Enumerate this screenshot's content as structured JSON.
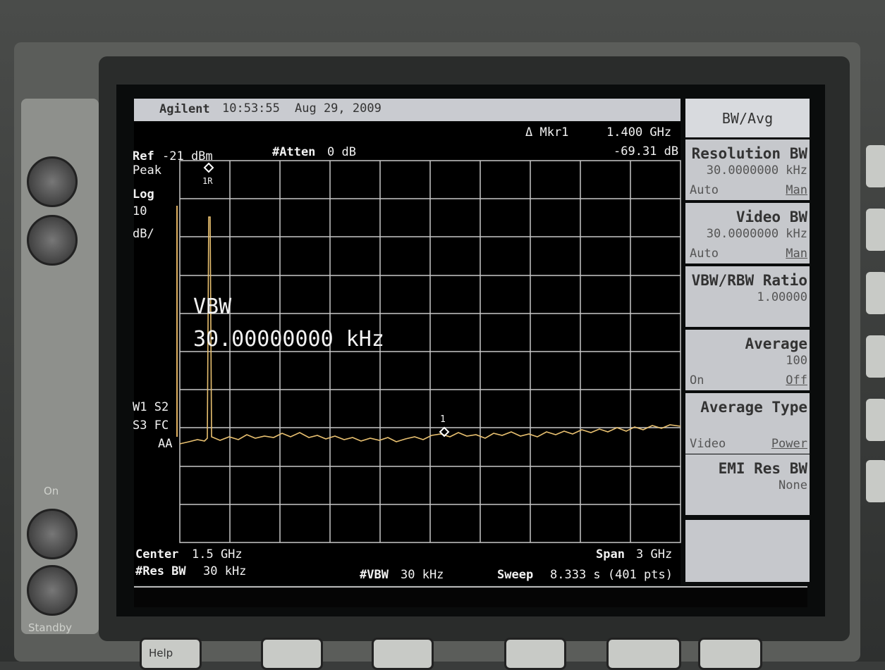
{
  "header": {
    "brand": "Agilent",
    "time": "10:53:55",
    "date": "Aug 29, 2009"
  },
  "marker_readout": {
    "label": "Δ Mkr1",
    "frequency": "1.400 GHz",
    "level": "-69.31 dB"
  },
  "reference": {
    "ref_label": "Ref",
    "ref_value": "-21 dBm",
    "atten_label": "#Atten",
    "atten_value": "0 dB"
  },
  "left_annotations": {
    "detector": "Peak",
    "scale": "Log",
    "per_div": "10",
    "per_div_unit": "dB/",
    "trace_modes_1": "W1 S2",
    "trace_modes_2": "S3 FC",
    "coupling": "AA"
  },
  "markers": {
    "ref_marker": "1R",
    "delta_marker": "1"
  },
  "overlay": {
    "label": "VBW",
    "value": "30.00000000 kHz"
  },
  "footer": {
    "center_label": "Center",
    "center_value": "1.5 GHz",
    "span_label": "Span",
    "span_value": "3 GHz",
    "rbw_label": "#Res BW",
    "rbw_value": "30 kHz",
    "vbw_label": "#VBW",
    "vbw_value": "30 kHz",
    "sweep_label": "Sweep",
    "sweep_value": "8.333 s (401 pts)"
  },
  "softkeys": {
    "title": "BW/Avg",
    "keys": [
      {
        "label": "Resolution BW",
        "value": "30.0000000 kHz",
        "options": [
          "Auto",
          "Man"
        ]
      },
      {
        "label": "Video BW",
        "value": "30.0000000 kHz",
        "options": [
          "Auto",
          "Man"
        ]
      },
      {
        "label": "VBW/RBW Ratio",
        "value": "1.00000"
      },
      {
        "label": "Average",
        "value": "100",
        "options": [
          "On",
          "Off"
        ]
      },
      {
        "label": "Average Type",
        "options": [
          "Video",
          "Power"
        ]
      },
      {
        "label": "EMI Res BW",
        "value": "None"
      }
    ]
  },
  "bezel": {
    "on": "On",
    "standby": "Standby",
    "help": "Help"
  }
}
